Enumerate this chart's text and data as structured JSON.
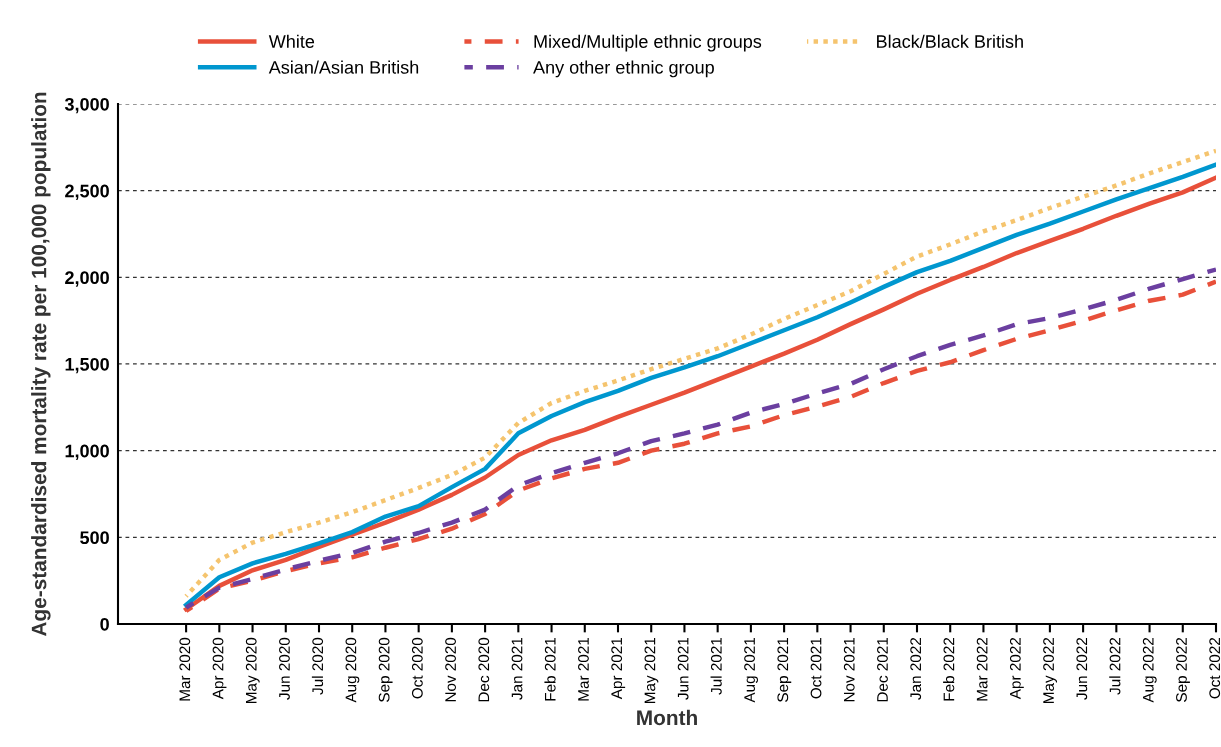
{
  "chart_data": {
    "type": "line",
    "xlabel": "Month",
    "ylabel": "Age-standardised mortality rate per 100,000 population",
    "categories": [
      "Mar 2020",
      "Apr 2020",
      "May 2020",
      "Jun 2020",
      "Jul 2020",
      "Aug 2020",
      "Sep 2020",
      "Oct 2020",
      "Nov 2020",
      "Dec 2020",
      "Jan 2021",
      "Feb 2021",
      "Mar 2021",
      "Apr 2021",
      "May 2021",
      "Jun 2021",
      "Jul 2021",
      "Aug 2021",
      "Sep 2021",
      "Oct 2021",
      "Nov 2021",
      "Dec 2021",
      "Jan 2022",
      "Feb 2022",
      "Mar 2022",
      "Apr 2022",
      "May 2022",
      "Jun 2022",
      "Jul 2022",
      "Aug 2022",
      "Sep 2022",
      "Oct 2022"
    ],
    "ylim": [
      0,
      3000
    ],
    "yticks": [
      0,
      500,
      {
        "value": 1000,
        "label": "1,000"
      },
      {
        "value": 1500,
        "label": "1,500"
      },
      {
        "value": 2000,
        "label": "2,000"
      },
      {
        "value": 2500,
        "label": "2,500"
      },
      {
        "value": 3000,
        "label": "3,000"
      }
    ],
    "grid": "y",
    "legend": "top",
    "marker": "none",
    "series": [
      {
        "name": "White",
        "color": "#e8503a",
        "line_style": "solid",
        "values": [
          85,
          220,
          310,
          370,
          445,
          515,
          585,
          660,
          745,
          845,
          975,
          1060,
          1120,
          1195,
          1265,
          1335,
          1410,
          1485,
          1560,
          1640,
          1730,
          1815,
          1905,
          1985,
          2060,
          2140,
          2210,
          2280,
          2355,
          2425,
          2490,
          2575
        ]
      },
      {
        "name": "Asian/Asian British",
        "color": "#0097cf",
        "line_style": "solid",
        "values": [
          110,
          270,
          350,
          405,
          465,
          530,
          620,
          680,
          790,
          895,
          1100,
          1200,
          1280,
          1345,
          1420,
          1480,
          1545,
          1620,
          1695,
          1770,
          1855,
          1945,
          2030,
          2095,
          2170,
          2245,
          2310,
          2380,
          2450,
          2515,
          2580,
          2650
        ]
      },
      {
        "name": "Mixed/Multiple ethnic groups",
        "color": "#e8503a",
        "line_style": "dashed",
        "values": [
          75,
          205,
          250,
          305,
          350,
          385,
          440,
          490,
          550,
          635,
          770,
          840,
          895,
          930,
          1000,
          1040,
          1100,
          1140,
          1205,
          1255,
          1310,
          1390,
          1460,
          1510,
          1580,
          1645,
          1695,
          1750,
          1810,
          1865,
          1900,
          1975
        ]
      },
      {
        "name": "Any other ethnic group",
        "color": "#6b3fa0",
        "line_style": "dashed",
        "values": [
          95,
          210,
          260,
          315,
          365,
          410,
          475,
          525,
          585,
          660,
          800,
          870,
          930,
          985,
          1055,
          1100,
          1150,
          1220,
          1270,
          1330,
          1385,
          1470,
          1545,
          1610,
          1665,
          1730,
          1765,
          1815,
          1870,
          1935,
          1990,
          2045
        ]
      },
      {
        "name": "Black/Black British",
        "color": "#f5c46e",
        "line_style": "dotted",
        "values": [
          160,
          370,
          470,
          530,
          585,
          645,
          715,
          785,
          860,
          960,
          1160,
          1275,
          1345,
          1405,
          1470,
          1530,
          1590,
          1670,
          1760,
          1840,
          1920,
          2020,
          2120,
          2190,
          2265,
          2330,
          2400,
          2465,
          2530,
          2600,
          2665,
          2730
        ]
      }
    ]
  }
}
